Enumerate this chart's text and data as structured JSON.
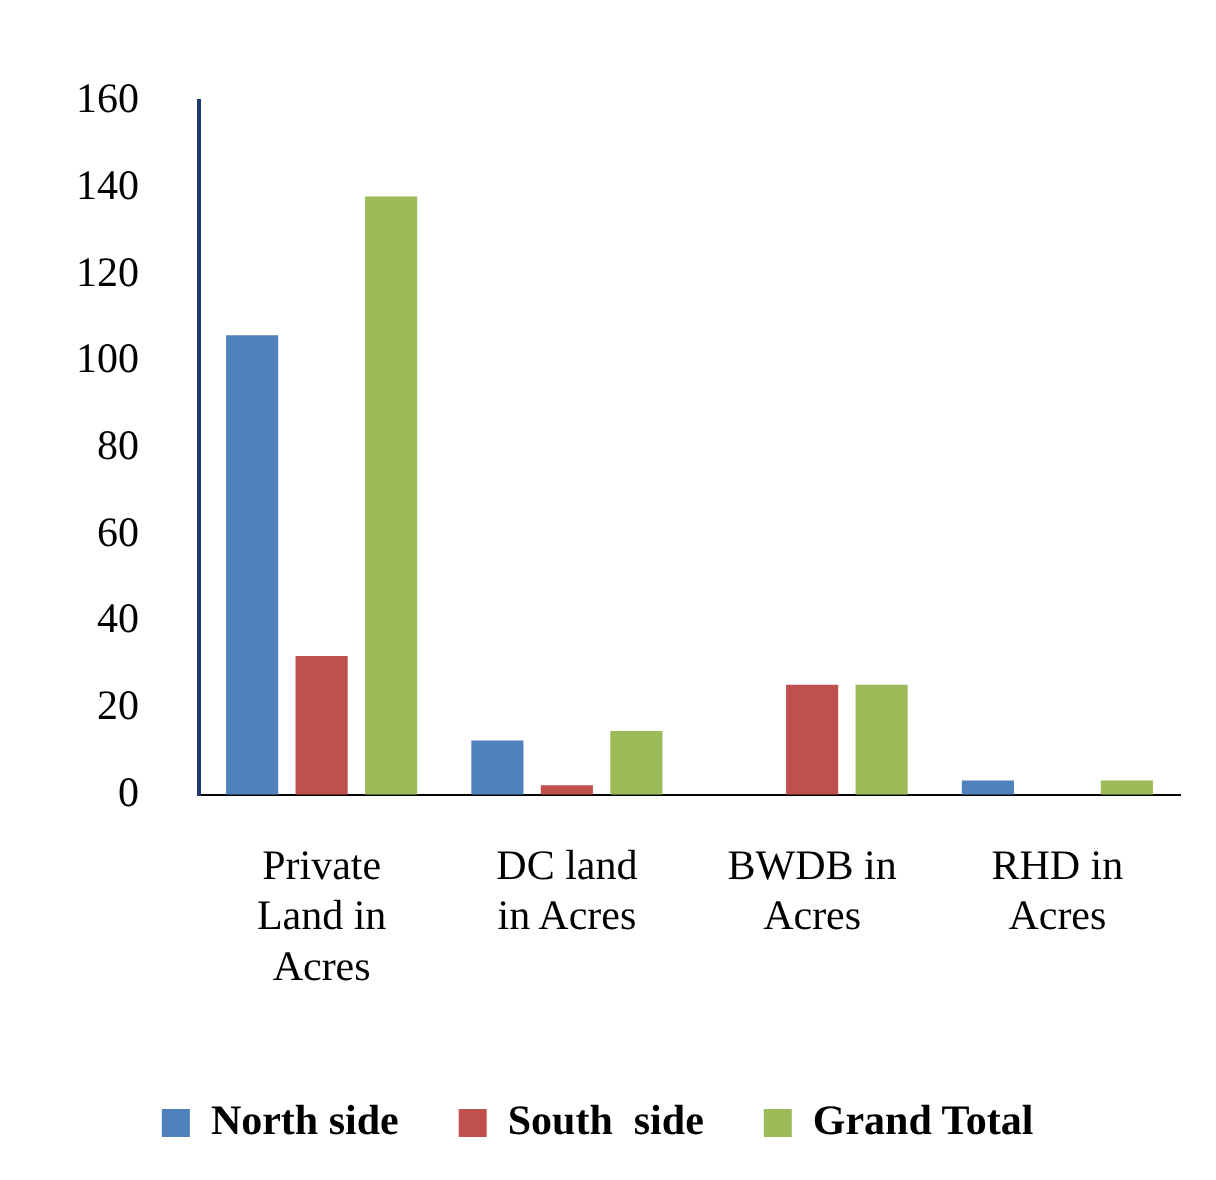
{
  "chart_data": {
    "type": "bar",
    "categories": [
      "Private Land in Acres",
      "DC land in Acres",
      "BWDB in Acres",
      "RHD in Acres"
    ],
    "series": [
      {
        "name": "North side",
        "color": "#4f81bd",
        "values": [
          106,
          12.5,
          0,
          3.3
        ]
      },
      {
        "name": "South  side",
        "color": "#c0504d",
        "values": [
          32,
          2.2,
          25.4,
          0
        ]
      },
      {
        "name": "Grand Total",
        "color": "#9bbb59",
        "values": [
          138,
          14.7,
          25.4,
          3.3
        ]
      }
    ],
    "ylim": [
      0,
      160
    ],
    "yticks": [
      0,
      20,
      40,
      60,
      80,
      100,
      120,
      140,
      160
    ],
    "grid": false,
    "legend": "bottom"
  }
}
